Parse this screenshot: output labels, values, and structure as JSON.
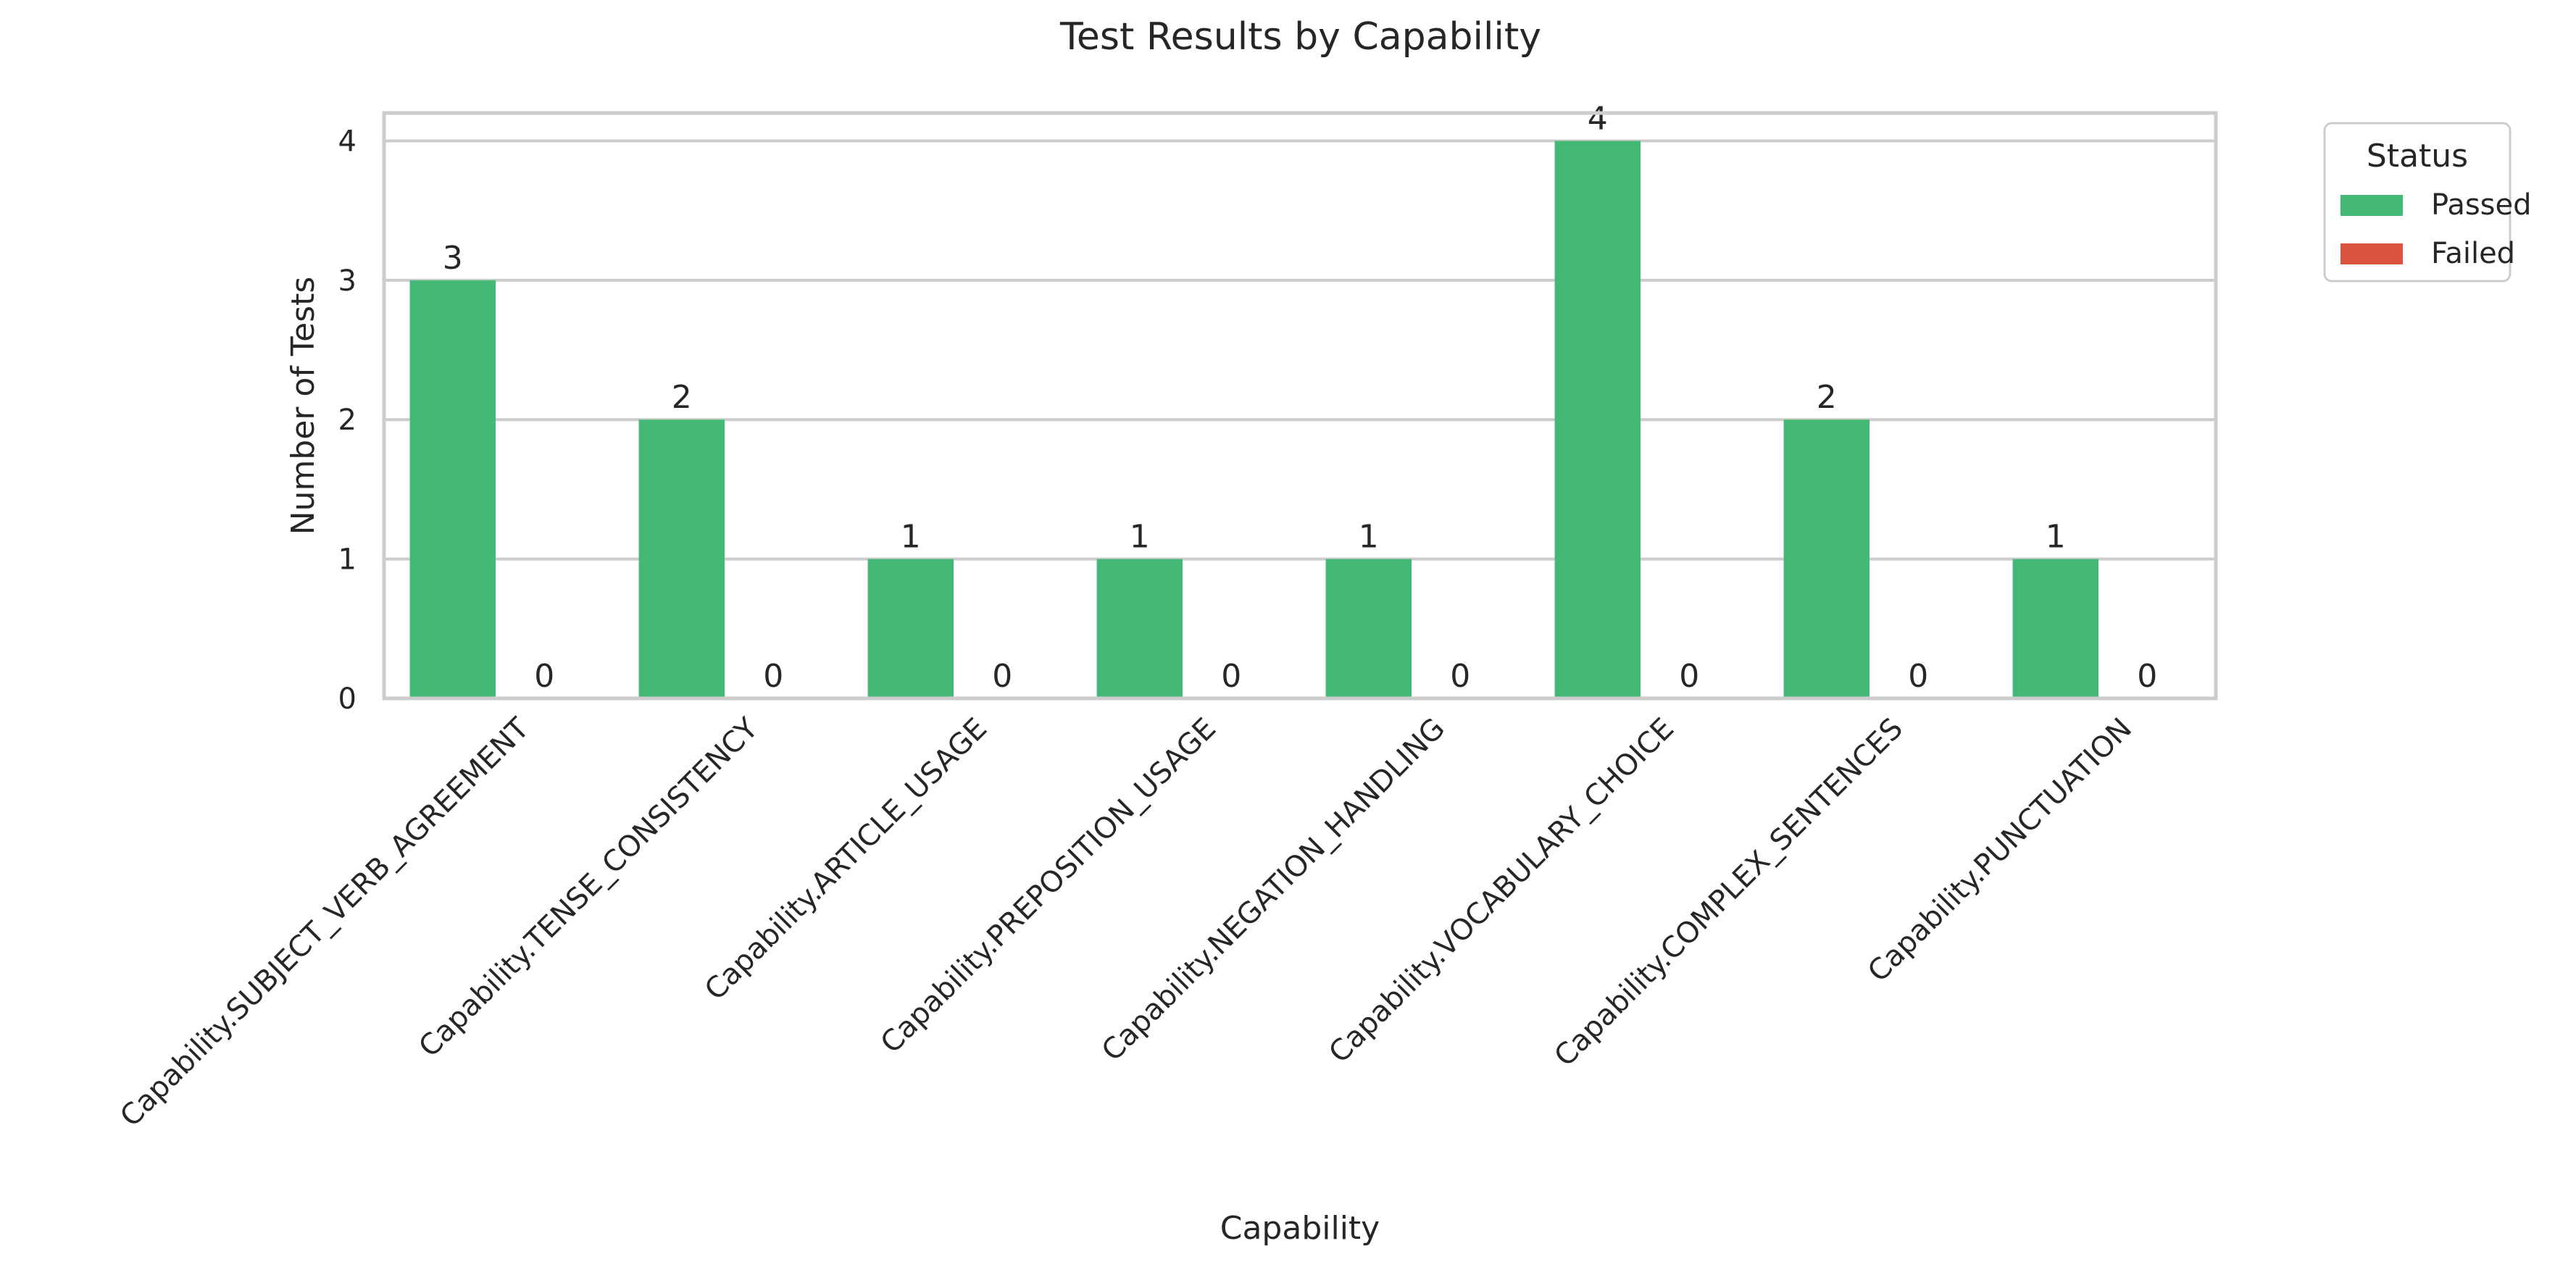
{
  "chart_data": {
    "type": "bar",
    "title": "Test Results by Capability",
    "xlabel": "Capability",
    "ylabel": "Number of Tests",
    "categories": [
      "Capability.SUBJECT_VERB_AGREEMENT",
      "Capability.TENSE_CONSISTENCY",
      "Capability.ARTICLE_USAGE",
      "Capability.PREPOSITION_USAGE",
      "Capability.NEGATION_HANDLING",
      "Capability.VOCABULARY_CHOICE",
      "Capability.COMPLEX_SENTENCES",
      "Capability.PUNCTUATION"
    ],
    "series": [
      {
        "name": "Passed",
        "color": "#44b975",
        "values": [
          3,
          2,
          1,
          1,
          1,
          4,
          2,
          1
        ]
      },
      {
        "name": "Failed",
        "color": "#d9533f",
        "values": [
          0,
          0,
          0,
          0,
          0,
          0,
          0,
          0
        ]
      }
    ],
    "ylim": [
      0,
      4.2
    ],
    "yticks": [
      0,
      1,
      2,
      3,
      4
    ],
    "grid": true,
    "legend": {
      "title": "Status",
      "placement": "outside-top-right"
    }
  }
}
